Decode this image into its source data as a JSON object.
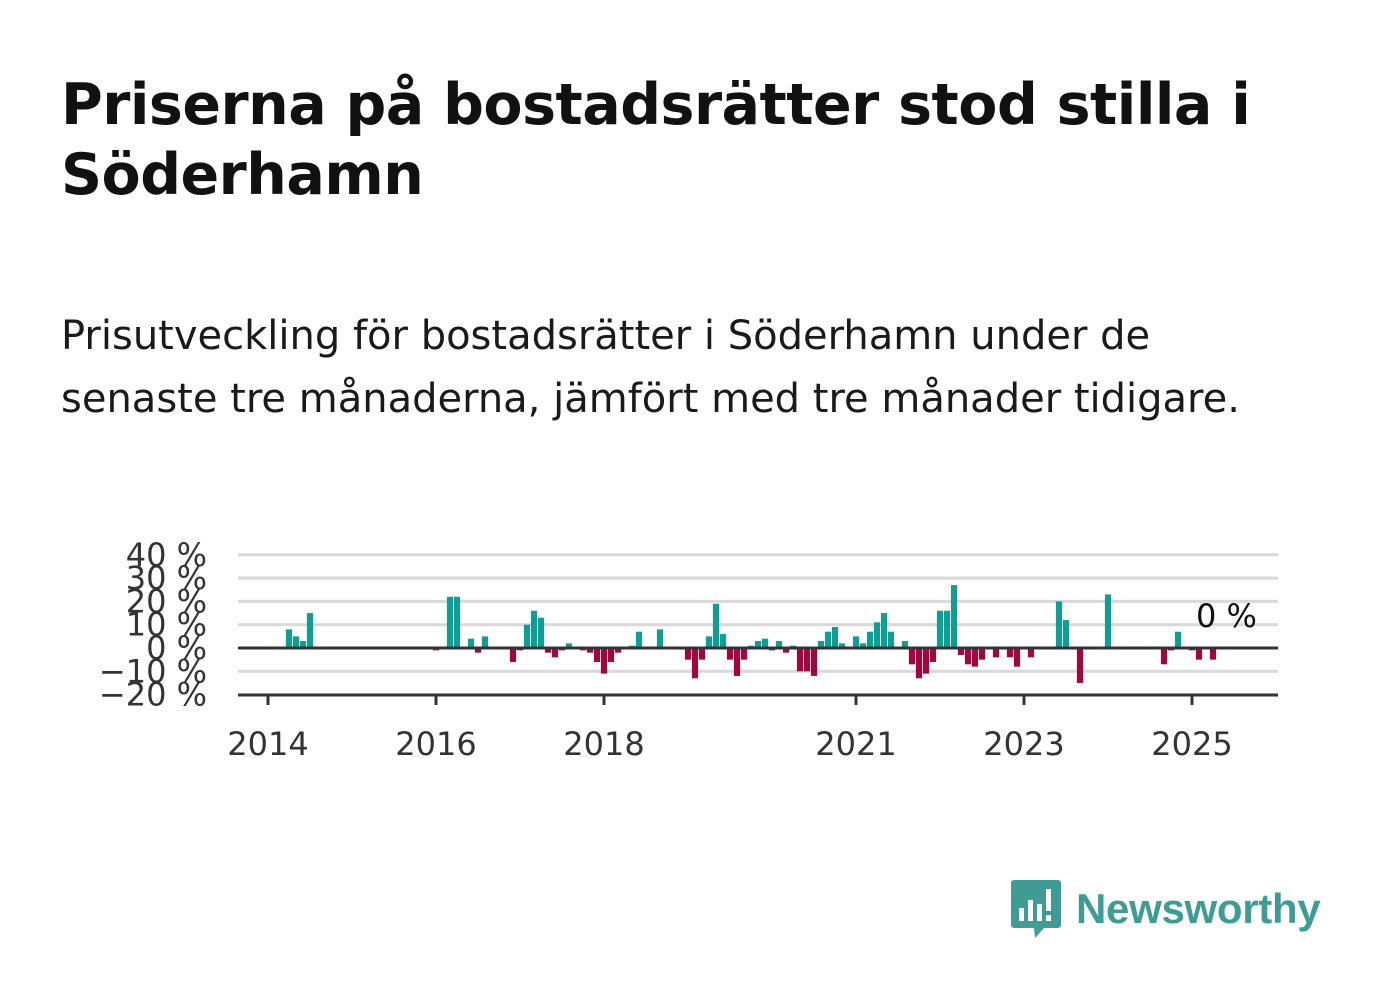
{
  "header": {
    "title": "Priserna på bostadsrätter stod stilla i Söderhamn",
    "subtitle": "Prisutveckling för bostadsrätter i Söderhamn under de senaste tre månaderna, jämfört med tre månader tidigare."
  },
  "brand": {
    "name": "Newsworthy",
    "color": "#3f9c95"
  },
  "colors": {
    "positive": "#109e94",
    "negative": "#a1063e",
    "grid": "#d9d9d9",
    "axis": "#333333"
  },
  "chart_data": {
    "type": "bar",
    "x_ticks": [
      "2014",
      "2016",
      "2018",
      "2021",
      "2023",
      "2025"
    ],
    "y_ticks": [
      "−20 %",
      "−10 %",
      "0 %",
      "10 %",
      "20 %",
      "30 %",
      "40 %"
    ],
    "ylim": [
      -20,
      40
    ],
    "grid": true,
    "last_value_label": "0 %",
    "series": [
      {
        "values": [
          [
            "2014-04",
            8
          ],
          [
            "2014-05",
            5
          ],
          [
            "2014-06",
            3
          ],
          [
            "2014-07",
            15
          ],
          [
            "2016-01",
            -1
          ],
          [
            "2016-03",
            22
          ],
          [
            "2016-04",
            22
          ],
          [
            "2016-06",
            4
          ],
          [
            "2016-07",
            -2
          ],
          [
            "2016-08",
            5
          ],
          [
            "2016-12",
            -6
          ],
          [
            "2017-01",
            -1
          ],
          [
            "2017-02",
            10
          ],
          [
            "2017-03",
            16
          ],
          [
            "2017-04",
            13
          ],
          [
            "2017-05",
            -2
          ],
          [
            "2017-06",
            -4
          ],
          [
            "2017-07",
            -1
          ],
          [
            "2017-08",
            2
          ],
          [
            "2017-10",
            -1
          ],
          [
            "2017-11",
            -2
          ],
          [
            "2017-12",
            -6
          ],
          [
            "2018-01",
            -11
          ],
          [
            "2018-02",
            -6
          ],
          [
            "2018-03",
            -2
          ],
          [
            "2018-05",
            1
          ],
          [
            "2018-06",
            7
          ],
          [
            "2018-09",
            8
          ],
          [
            "2019-01",
            -5
          ],
          [
            "2019-02",
            -13
          ],
          [
            "2019-03",
            -5
          ],
          [
            "2019-04",
            5
          ],
          [
            "2019-05",
            19
          ],
          [
            "2019-06",
            6
          ],
          [
            "2019-07",
            -5
          ],
          [
            "2019-08",
            -12
          ],
          [
            "2019-09",
            -5
          ],
          [
            "2019-10",
            1
          ],
          [
            "2019-11",
            3
          ],
          [
            "2019-12",
            4
          ],
          [
            "2020-01",
            -1
          ],
          [
            "2020-02",
            3
          ],
          [
            "2020-03",
            -2
          ],
          [
            "2020-04",
            1
          ],
          [
            "2020-05",
            -10
          ],
          [
            "2020-06",
            -10
          ],
          [
            "2020-07",
            -12
          ],
          [
            "2020-08",
            3
          ],
          [
            "2020-09",
            7
          ],
          [
            "2020-10",
            9
          ],
          [
            "2020-11",
            2
          ],
          [
            "2021-01",
            5
          ],
          [
            "2021-02",
            2
          ],
          [
            "2021-03",
            7
          ],
          [
            "2021-04",
            11
          ],
          [
            "2021-05",
            15
          ],
          [
            "2021-06",
            7
          ],
          [
            "2021-08",
            3
          ],
          [
            "2021-09",
            -7
          ],
          [
            "2021-10",
            -13
          ],
          [
            "2021-11",
            -11
          ],
          [
            "2021-12",
            -6
          ],
          [
            "2022-01",
            16
          ],
          [
            "2022-02",
            16
          ],
          [
            "2022-03",
            27
          ],
          [
            "2022-04",
            -3
          ],
          [
            "2022-05",
            -7
          ],
          [
            "2022-06",
            -8
          ],
          [
            "2022-07",
            -5
          ],
          [
            "2022-09",
            -4
          ],
          [
            "2022-11",
            -4
          ],
          [
            "2022-12",
            -8
          ],
          [
            "2023-02",
            -4
          ],
          [
            "2023-06",
            20
          ],
          [
            "2023-07",
            12
          ],
          [
            "2023-09",
            -15
          ],
          [
            "2024-01",
            23
          ],
          [
            "2024-09",
            -7
          ],
          [
            "2024-10",
            -1
          ],
          [
            "2024-11",
            7
          ],
          [
            "2025-01",
            -1
          ],
          [
            "2025-02",
            -5
          ],
          [
            "2025-04",
            -5
          ],
          [
            "2025-05",
            0
          ]
        ]
      }
    ]
  }
}
